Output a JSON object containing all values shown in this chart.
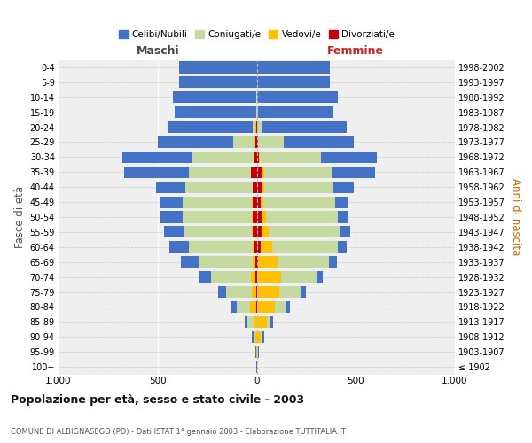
{
  "age_groups": [
    "100+",
    "95-99",
    "90-94",
    "85-89",
    "80-84",
    "75-79",
    "70-74",
    "65-69",
    "60-64",
    "55-59",
    "50-54",
    "45-49",
    "40-44",
    "35-39",
    "30-34",
    "25-29",
    "20-24",
    "15-19",
    "10-14",
    "5-9",
    "0-4"
  ],
  "birth_years": [
    "≤ 1902",
    "1903-1907",
    "1908-1912",
    "1913-1917",
    "1918-1922",
    "1923-1927",
    "1928-1932",
    "1933-1937",
    "1938-1942",
    "1943-1947",
    "1948-1952",
    "1953-1957",
    "1958-1962",
    "1963-1967",
    "1968-1972",
    "1973-1977",
    "1978-1982",
    "1983-1987",
    "1988-1992",
    "1993-1997",
    "1998-2002"
  ],
  "male_celibe": [
    2,
    3,
    8,
    15,
    25,
    40,
    65,
    90,
    100,
    105,
    110,
    115,
    150,
    330,
    355,
    380,
    430,
    410,
    420,
    390,
    390
  ],
  "male_coniugato": [
    0,
    2,
    10,
    30,
    70,
    130,
    200,
    270,
    320,
    340,
    350,
    350,
    340,
    310,
    310,
    110,
    15,
    4,
    1,
    0,
    0
  ],
  "male_vedovo": [
    0,
    1,
    5,
    15,
    30,
    20,
    25,
    15,
    10,
    6,
    4,
    3,
    2,
    3,
    2,
    5,
    3,
    0,
    0,
    0,
    0
  ],
  "male_divorziato": [
    0,
    0,
    0,
    0,
    2,
    4,
    5,
    6,
    12,
    18,
    20,
    20,
    18,
    28,
    12,
    5,
    2,
    0,
    0,
    0,
    0
  ],
  "female_celibe": [
    2,
    5,
    10,
    15,
    20,
    25,
    30,
    40,
    45,
    50,
    55,
    70,
    100,
    220,
    280,
    350,
    430,
    380,
    410,
    370,
    370
  ],
  "female_coniugata": [
    0,
    2,
    8,
    20,
    55,
    110,
    180,
    260,
    330,
    360,
    360,
    360,
    350,
    340,
    310,
    130,
    20,
    5,
    1,
    0,
    0
  ],
  "female_vedova": [
    0,
    5,
    20,
    50,
    90,
    110,
    120,
    100,
    60,
    35,
    20,
    12,
    8,
    6,
    4,
    3,
    2,
    0,
    0,
    0,
    0
  ],
  "female_divorziata": [
    0,
    0,
    0,
    0,
    2,
    3,
    4,
    5,
    18,
    25,
    28,
    22,
    30,
    30,
    12,
    5,
    2,
    0,
    0,
    0,
    0
  ],
  "color_celibe": "#4472c4",
  "color_coniugato": "#c5d9a0",
  "color_vedovo": "#ffc000",
  "color_divorziato": "#c0000a",
  "xlim": 1000,
  "title": "Popolazione per età, sesso e stato civile - 2003",
  "subtitle": "COMUNE DI ALBIGNASEGO (PD) - Dati ISTAT 1° gennaio 2003 - Elaborazione TUTTITALIA.IT",
  "ylabel_left": "Fasce di età",
  "ylabel_right": "Anni di nascita",
  "label_maschi": "Maschi",
  "label_femmine": "Femmine",
  "legend_celibi": "Celibi/Nubili",
  "legend_coniugati": "Coniugati/e",
  "legend_vedovi": "Vedovi/e",
  "legend_divorziati": "Divorziati/e",
  "background_color": "#efefef",
  "grid_color": "#ffffff",
  "fig_width": 6.0,
  "fig_height": 5.0,
  "dpi": 100
}
